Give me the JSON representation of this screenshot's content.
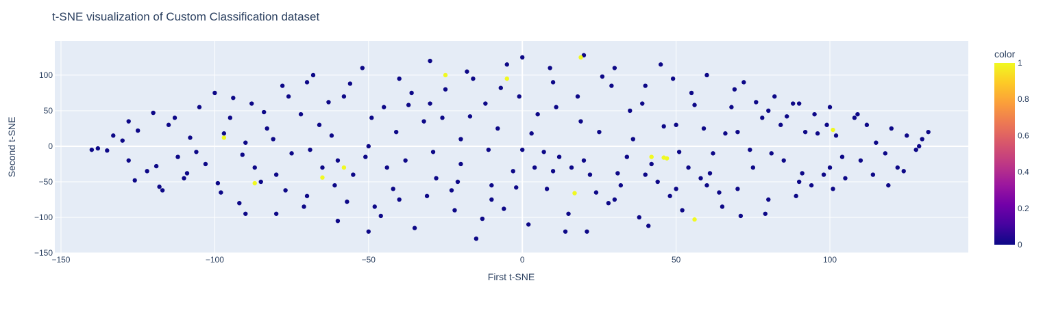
{
  "chart_data": {
    "type": "scatter",
    "title": "t-SNE visualization of Custom Classification dataset",
    "xlabel": "First t-SNE",
    "ylabel": "Second t-SNE",
    "xlim": [
      -152,
      145
    ],
    "ylim": [
      -150,
      148
    ],
    "xticks": [
      -150,
      -100,
      -50,
      0,
      50,
      100
    ],
    "yticks": [
      -150,
      -100,
      -50,
      0,
      50,
      100
    ],
    "xtick_labels": [
      "−150",
      "−100",
      "−50",
      "0",
      "50",
      "100"
    ],
    "ytick_labels": [
      "−150",
      "−100",
      "−50",
      "0",
      "50",
      "100"
    ],
    "grid": true,
    "colorbar": {
      "title": "color",
      "range": [
        0,
        1
      ],
      "ticks": [
        0,
        0.2,
        0.4,
        0.6,
        0.8,
        1
      ],
      "tick_labels": [
        "0",
        "0.2",
        "0.4",
        "0.6",
        "0.8",
        "1"
      ]
    },
    "series": [
      {
        "color_value": 0,
        "color": "#0d0887",
        "points": [
          [
            -138,
            -3
          ],
          [
            -135,
            -6
          ],
          [
            -130,
            8
          ],
          [
            -128,
            -20
          ],
          [
            -125,
            22
          ],
          [
            -122,
            -35
          ],
          [
            -120,
            47
          ],
          [
            -118,
            -57
          ],
          [
            -115,
            30
          ],
          [
            -112,
            -15
          ],
          [
            -110,
            -45
          ],
          [
            -108,
            12
          ],
          [
            -105,
            55
          ],
          [
            -103,
            -25
          ],
          [
            -100,
            75
          ],
          [
            -98,
            -65
          ],
          [
            -95,
            40
          ],
          [
            -92,
            -80
          ],
          [
            -90,
            5
          ],
          [
            -88,
            60
          ],
          [
            -85,
            -50
          ],
          [
            -83,
            25
          ],
          [
            -80,
            -95
          ],
          [
            -78,
            85
          ],
          [
            -75,
            -10
          ],
          [
            -72,
            45
          ],
          [
            -70,
            -70
          ],
          [
            -68,
            100
          ],
          [
            -65,
            -30
          ],
          [
            -62,
            15
          ],
          [
            -60,
            -105
          ],
          [
            -58,
            70
          ],
          [
            -55,
            -40
          ],
          [
            -52,
            110
          ],
          [
            -50,
            0
          ],
          [
            -48,
            -85
          ],
          [
            -45,
            55
          ],
          [
            -42,
            -60
          ],
          [
            -40,
            95
          ],
          [
            -38,
            -20
          ],
          [
            -35,
            -115
          ],
          [
            -32,
            35
          ],
          [
            -30,
            120
          ],
          [
            -28,
            -45
          ],
          [
            -25,
            80
          ],
          [
            -22,
            -90
          ],
          [
            -20,
            10
          ],
          [
            -18,
            105
          ],
          [
            -15,
            -130
          ],
          [
            -12,
            60
          ],
          [
            -10,
            -75
          ],
          [
            -8,
            25
          ],
          [
            -5,
            115
          ],
          [
            -3,
            -35
          ],
          [
            0,
            125
          ],
          [
            2,
            -110
          ],
          [
            5,
            45
          ],
          [
            8,
            -60
          ],
          [
            10,
            90
          ],
          [
            12,
            -15
          ],
          [
            15,
            -95
          ],
          [
            18,
            70
          ],
          [
            20,
            128
          ],
          [
            22,
            -40
          ],
          [
            25,
            20
          ],
          [
            28,
            -80
          ],
          [
            30,
            110
          ],
          [
            32,
            -55
          ],
          [
            35,
            50
          ],
          [
            38,
            -100
          ],
          [
            40,
            85
          ],
          [
            42,
            -25
          ],
          [
            45,
            115
          ],
          [
            48,
            -70
          ],
          [
            50,
            30
          ],
          [
            52,
            -90
          ],
          [
            55,
            75
          ],
          [
            58,
            -45
          ],
          [
            60,
            100
          ],
          [
            62,
            -10
          ],
          [
            65,
            -85
          ],
          [
            68,
            55
          ],
          [
            70,
            -60
          ],
          [
            72,
            90
          ],
          [
            75,
            -30
          ],
          [
            78,
            40
          ],
          [
            80,
            -75
          ],
          [
            82,
            70
          ],
          [
            85,
            -20
          ],
          [
            88,
            60
          ],
          [
            90,
            -50
          ],
          [
            92,
            20
          ],
          [
            95,
            45
          ],
          [
            98,
            -40
          ],
          [
            100,
            55
          ],
          [
            102,
            15
          ],
          [
            105,
            -45
          ],
          [
            108,
            40
          ],
          [
            110,
            -20
          ],
          [
            112,
            30
          ],
          [
            115,
            5
          ],
          [
            118,
            -10
          ],
          [
            120,
            25
          ],
          [
            122,
            -30
          ],
          [
            125,
            15
          ],
          [
            128,
            -5
          ],
          [
            130,
            10
          ],
          [
            132,
            20
          ],
          [
            -140,
            -5
          ],
          [
            -133,
            15
          ],
          [
            -126,
            -48
          ],
          [
            -119,
            -28
          ],
          [
            -113,
            40
          ],
          [
            -106,
            -8
          ],
          [
            -99,
            -52
          ],
          [
            -94,
            68
          ],
          [
            -87,
            -30
          ],
          [
            -81,
            10
          ],
          [
            -76,
            70
          ],
          [
            -71,
            -85
          ],
          [
            -66,
            30
          ],
          [
            -61,
            -55
          ],
          [
            -56,
            88
          ],
          [
            -51,
            -15
          ],
          [
            -46,
            -98
          ],
          [
            -41,
            20
          ],
          [
            -36,
            75
          ],
          [
            -31,
            -70
          ],
          [
            -26,
            40
          ],
          [
            -21,
            -50
          ],
          [
            -16,
            95
          ],
          [
            -11,
            -5
          ],
          [
            -6,
            -88
          ],
          [
            -1,
            70
          ],
          [
            4,
            -30
          ],
          [
            9,
            110
          ],
          [
            14,
            -120
          ],
          [
            19,
            35
          ],
          [
            24,
            -65
          ],
          [
            29,
            85
          ],
          [
            34,
            -15
          ],
          [
            39,
            60
          ],
          [
            44,
            -50
          ],
          [
            49,
            95
          ],
          [
            54,
            -30
          ],
          [
            59,
            25
          ],
          [
            64,
            -65
          ],
          [
            69,
            80
          ],
          [
            74,
            -5
          ],
          [
            79,
            -95
          ],
          [
            84,
            30
          ],
          [
            89,
            -70
          ],
          [
            94,
            -55
          ],
          [
            99,
            30
          ],
          [
            104,
            -15
          ],
          [
            109,
            45
          ],
          [
            114,
            -40
          ],
          [
            119,
            -55
          ],
          [
            124,
            -35
          ],
          [
            129,
            0
          ],
          [
            -128,
            35
          ],
          [
            -117,
            -62
          ],
          [
            -109,
            -38
          ],
          [
            -97,
            18
          ],
          [
            -91,
            -12
          ],
          [
            -84,
            48
          ],
          [
            -77,
            -62
          ],
          [
            -69,
            -5
          ],
          [
            -63,
            62
          ],
          [
            -57,
            -78
          ],
          [
            -49,
            40
          ],
          [
            -44,
            -30
          ],
          [
            -37,
            58
          ],
          [
            -29,
            -8
          ],
          [
            -23,
            -62
          ],
          [
            -17,
            42
          ],
          [
            -13,
            -102
          ],
          [
            -7,
            82
          ],
          [
            -2,
            -58
          ],
          [
            3,
            18
          ],
          [
            7,
            -8
          ],
          [
            11,
            55
          ],
          [
            16,
            -30
          ],
          [
            21,
            -120
          ],
          [
            26,
            98
          ],
          [
            31,
            -38
          ],
          [
            36,
            10
          ],
          [
            41,
            -112
          ],
          [
            46,
            28
          ],
          [
            51,
            -8
          ],
          [
            56,
            58
          ],
          [
            61,
            -38
          ],
          [
            66,
            18
          ],
          [
            71,
            -98
          ],
          [
            76,
            62
          ],
          [
            81,
            -10
          ],
          [
            86,
            42
          ],
          [
            91,
            -38
          ],
          [
            96,
            18
          ],
          [
            101,
            -60
          ],
          [
            -80,
            -40
          ],
          [
            -60,
            -20
          ],
          [
            -40,
            -75
          ],
          [
            -20,
            -25
          ],
          [
            0,
            -5
          ],
          [
            20,
            -20
          ],
          [
            40,
            -40
          ],
          [
            60,
            -55
          ],
          [
            80,
            50
          ],
          [
            100,
            -30
          ],
          [
            -90,
            -95
          ],
          [
            -70,
            90
          ],
          [
            -50,
            -120
          ],
          [
            -30,
            60
          ],
          [
            -10,
            -55
          ],
          [
            10,
            -35
          ],
          [
            30,
            -75
          ],
          [
            50,
            -60
          ],
          [
            70,
            20
          ],
          [
            90,
            60
          ]
        ]
      },
      {
        "color_value": 1,
        "color": "#f0f921",
        "points": [
          [
            -97,
            12
          ],
          [
            -87,
            -52
          ],
          [
            -65,
            -44
          ],
          [
            -58,
            -30
          ],
          [
            -25,
            100
          ],
          [
            -5,
            95
          ],
          [
            17,
            -66
          ],
          [
            19,
            125
          ],
          [
            42,
            -15
          ],
          [
            46,
            -16
          ],
          [
            47,
            -17
          ],
          [
            56,
            -103
          ],
          [
            101,
            23
          ]
        ]
      }
    ]
  }
}
